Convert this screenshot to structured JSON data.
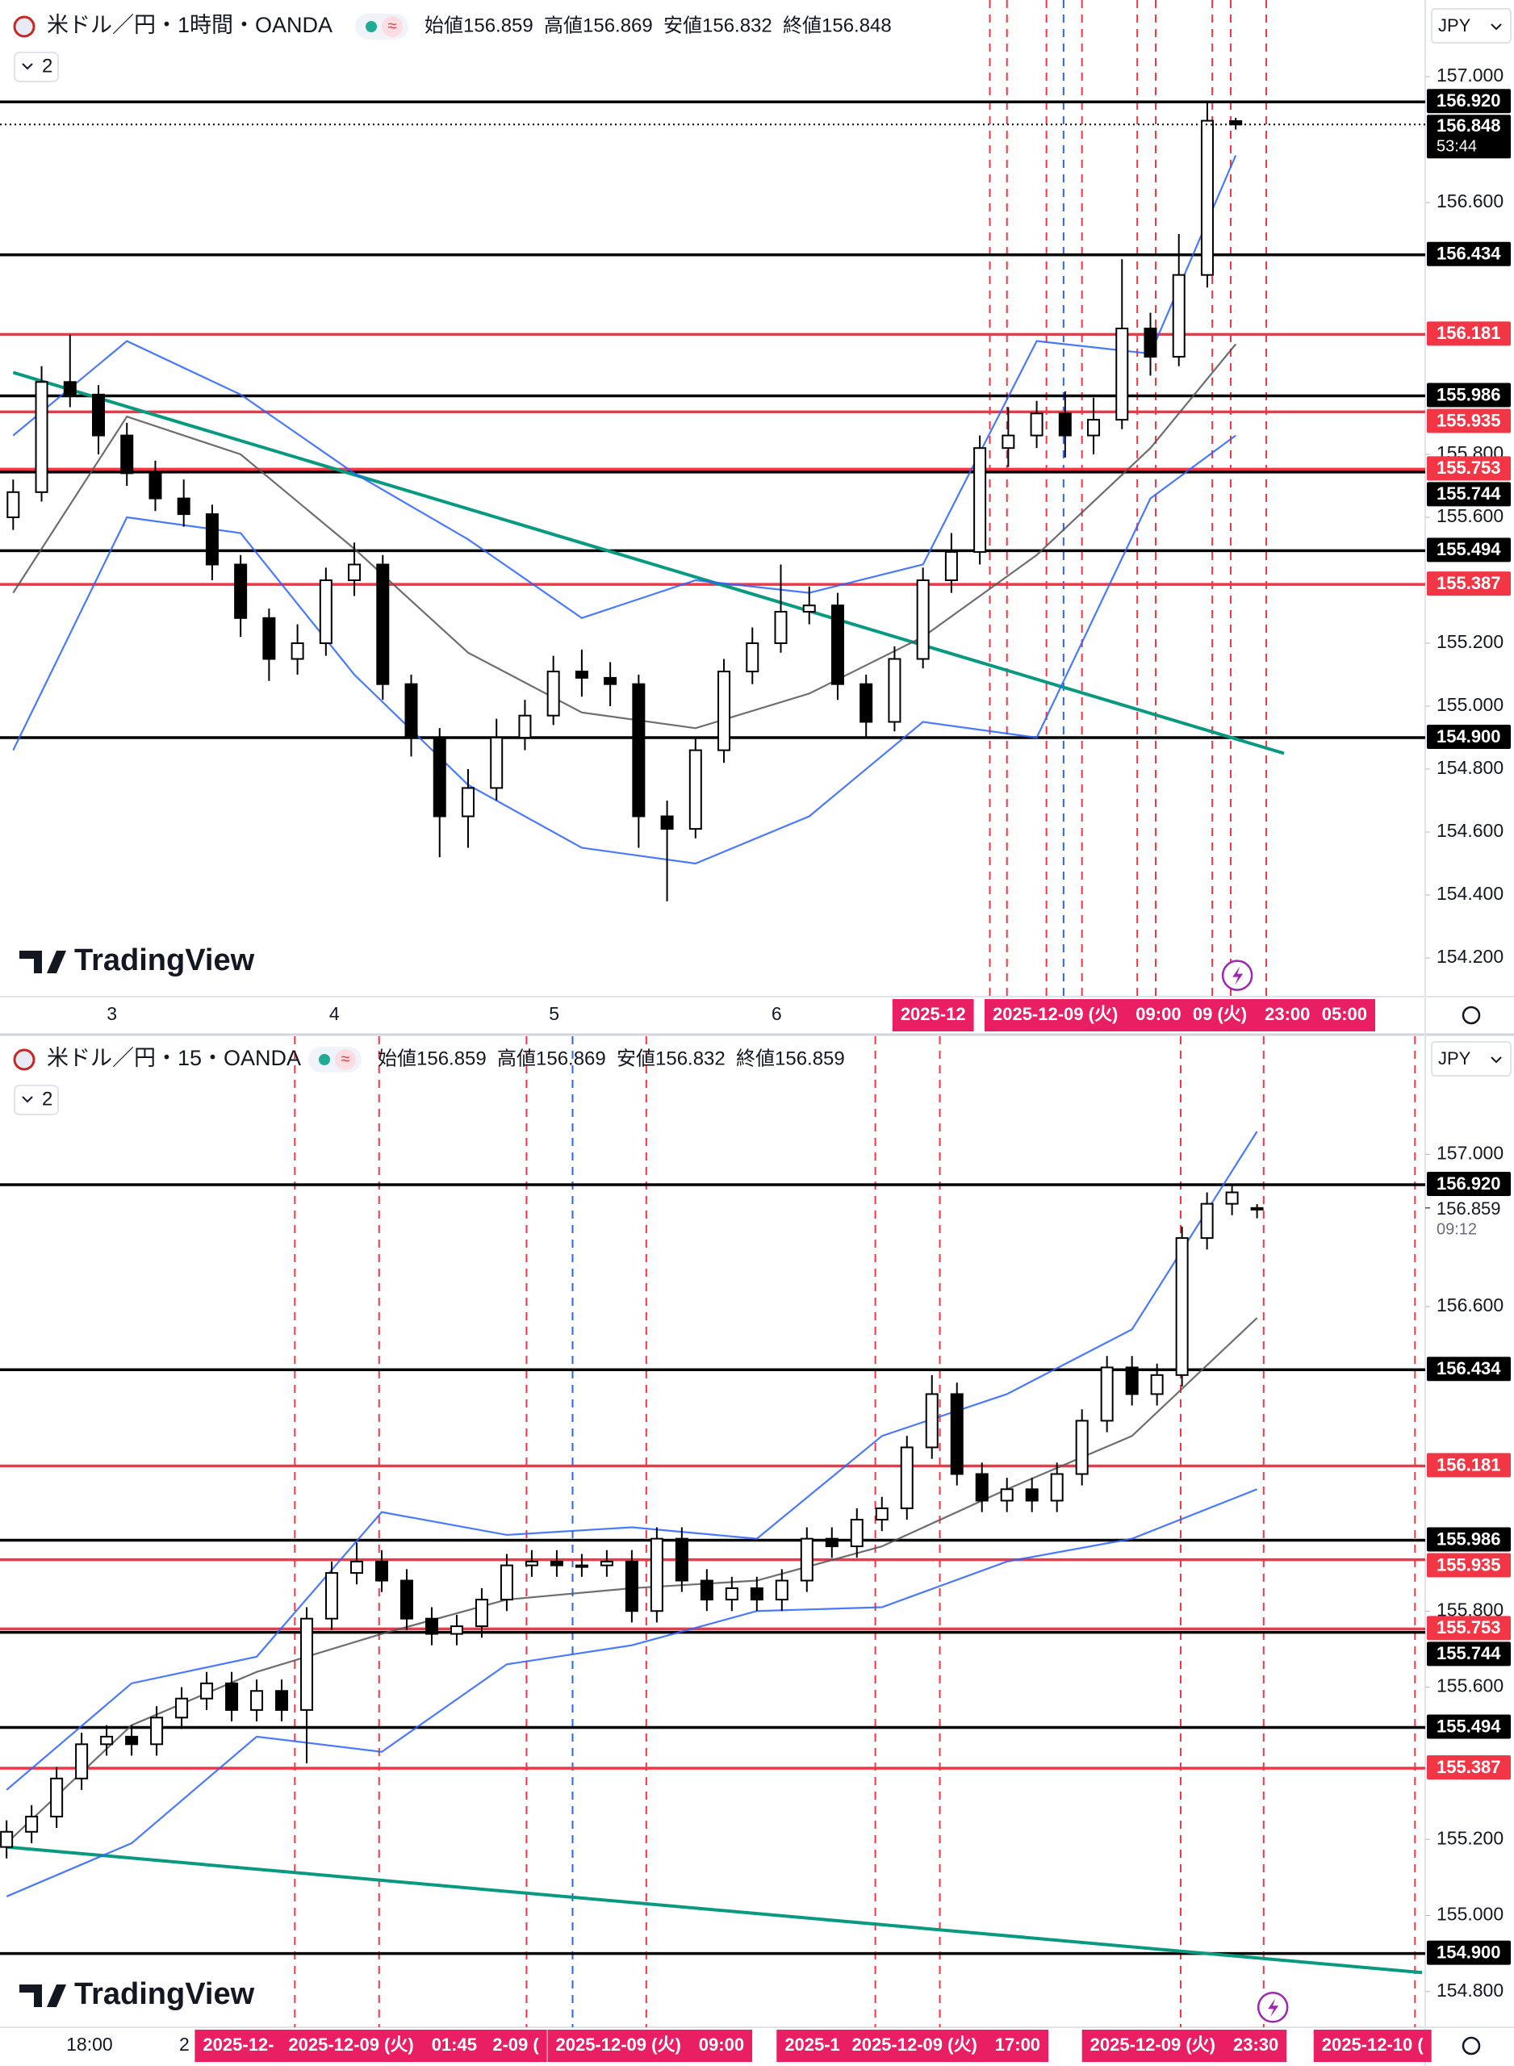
{
  "chart_data": [
    {
      "type": "candlestick",
      "title": "米ドル／円・1時間・OANDA",
      "ohlc": [
        "始値156.859",
        "高値156.869",
        "安値156.832",
        "終値156.848"
      ],
      "collapse": "2",
      "currency": "JPY",
      "watermark": "TradingView",
      "ylim": [
        154.1,
        157.2
      ],
      "yticks": [
        {
          "value": 157,
          "label": "157.000"
        },
        {
          "value": 156.6,
          "label": "156.600"
        },
        {
          "value": 155.8,
          "label": "155.800"
        },
        {
          "value": 155.6,
          "label": "155.600"
        },
        {
          "value": 155.2,
          "label": "155.200"
        },
        {
          "value": 155,
          "label": "155.000"
        },
        {
          "value": 154.8,
          "label": "154.800"
        },
        {
          "value": 154.6,
          "label": "154.600"
        },
        {
          "value": 154.4,
          "label": "154.400"
        },
        {
          "value": 154.2,
          "label": "154.200"
        }
      ],
      "candles": {
        "open": [
          155.6,
          155.68,
          156.03,
          155.99,
          155.86,
          155.74,
          155.66,
          155.61,
          155.45,
          155.28,
          155.15,
          155.2,
          155.4,
          155.45,
          155.07,
          154.9,
          154.65,
          154.74,
          154.9,
          154.97,
          155.11,
          155.09,
          155.07,
          154.65,
          154.61,
          154.86,
          155.11,
          155.2,
          155.3,
          155.32,
          155.07,
          154.95,
          155.15,
          155.4,
          155.49,
          155.82,
          155.86,
          155.93,
          155.86,
          155.91,
          156.2,
          156.11,
          156.37,
          156.859
        ],
        "high": [
          155.72,
          156.08,
          156.18,
          156.02,
          155.9,
          155.78,
          155.72,
          155.64,
          155.48,
          155.31,
          155.26,
          155.44,
          155.52,
          155.48,
          155.1,
          154.93,
          154.8,
          154.96,
          155.02,
          155.16,
          155.18,
          155.14,
          155.1,
          154.7,
          154.9,
          155.15,
          155.25,
          155.45,
          155.38,
          155.36,
          155.1,
          155.19,
          155.44,
          155.55,
          155.86,
          155.95,
          155.97,
          156.0,
          155.98,
          156.42,
          156.25,
          156.5,
          156.92,
          156.869
        ],
        "low": [
          155.56,
          155.65,
          155.95,
          155.8,
          155.7,
          155.62,
          155.57,
          155.4,
          155.22,
          155.08,
          155.1,
          155.16,
          155.35,
          155.02,
          154.84,
          154.52,
          154.55,
          154.7,
          154.86,
          154.94,
          155.03,
          155.0,
          154.55,
          154.38,
          154.58,
          154.82,
          155.07,
          155.17,
          155.26,
          155.02,
          154.9,
          154.92,
          155.12,
          155.36,
          155.45,
          155.76,
          155.82,
          155.79,
          155.8,
          155.88,
          156.05,
          156.08,
          156.33,
          156.832
        ],
        "close": [
          155.68,
          156.03,
          155.99,
          155.86,
          155.74,
          155.66,
          155.61,
          155.45,
          155.28,
          155.15,
          155.2,
          155.4,
          155.45,
          155.07,
          154.9,
          154.65,
          154.74,
          154.9,
          154.97,
          155.11,
          155.09,
          155.07,
          154.65,
          154.61,
          154.86,
          155.11,
          155.2,
          155.3,
          155.32,
          155.07,
          154.95,
          155.15,
          155.4,
          155.49,
          155.82,
          155.86,
          155.93,
          155.86,
          155.91,
          156.2,
          156.11,
          156.37,
          156.86,
          156.848
        ]
      },
      "band_x": [
        0,
        4,
        8,
        12,
        16,
        20,
        24,
        28,
        32,
        36,
        40,
        43
      ],
      "bands": [
        {
          "color": "#2962ff",
          "values": [
            155.86,
            156.16,
            155.99,
            155.74,
            155.53,
            155.28,
            155.4,
            155.36,
            155.45,
            156.16,
            156.12,
            156.75
          ]
        },
        {
          "color": "#555555",
          "values": [
            155.36,
            155.92,
            155.8,
            155.5,
            155.17,
            154.98,
            154.93,
            155.04,
            155.22,
            155.48,
            155.82,
            156.15
          ]
        },
        {
          "color": "#2962ff",
          "values": [
            154.86,
            155.6,
            155.55,
            155.1,
            154.75,
            154.55,
            154.5,
            154.65,
            154.95,
            154.9,
            155.66,
            155.86
          ]
        }
      ],
      "trendline": {
        "color": "#089981",
        "x": [
          0,
          44.7
        ],
        "values": [
          156.06,
          154.85
        ]
      },
      "levels": {
        "values": [
          {
            "value": 156.92,
            "label": "156.920"
          },
          156.434,
          156.181,
          155.986,
          155.935,
          155.753,
          155.744,
          155.494,
          155.387,
          {
            "value": 154.9,
            "label": "154.900"
          }
        ],
        "colors": [
          "#000000",
          "#000000",
          "#f23645",
          "#000000",
          "#f23645",
          "#f23645",
          "#000000",
          "#000000",
          "#f23645",
          "#000000"
        ]
      },
      "current": 156.848,
      "countdown": "53:44",
      "current_label_box": true,
      "time_labels": [
        "3",
        "4",
        "5",
        "6"
      ],
      "time_pills": [
        "2025-12",
        "2025-12-09 (火)　09:00",
        "09 (火)　23:00",
        "05:00"
      ]
    },
    {
      "type": "candlestick",
      "title": "米ドル／円・15・OANDA",
      "ohlc": [
        "始値156.859",
        "高値156.869",
        "安値156.832",
        "終値156.859"
      ],
      "collapse": "2",
      "currency": "JPY",
      "watermark": "TradingView",
      "ylim": [
        154.7,
        157.2
      ],
      "yticks": [
        {
          "value": 157,
          "label": "157.000"
        },
        {
          "value": 156.6,
          "label": "156.600"
        },
        {
          "value": 155.8,
          "label": "155.800"
        },
        {
          "value": 155.6,
          "label": "155.600"
        },
        {
          "value": 155.2,
          "label": "155.200"
        },
        {
          "value": 155,
          "label": "155.000"
        },
        {
          "value": 154.8,
          "label": "154.800"
        }
      ],
      "candles": {
        "open": [
          155.18,
          155.22,
          155.26,
          155.36,
          155.45,
          155.47,
          155.45,
          155.52,
          155.57,
          155.61,
          155.54,
          155.59,
          155.54,
          155.78,
          155.9,
          155.93,
          155.88,
          155.78,
          155.74,
          155.76,
          155.83,
          155.92,
          155.93,
          155.92,
          155.92,
          155.93,
          155.8,
          155.99,
          155.88,
          155.83,
          155.86,
          155.83,
          155.88,
          155.99,
          155.97,
          156.04,
          156.07,
          156.23,
          156.37,
          156.16,
          156.09,
          156.12,
          156.09,
          156.16,
          156.3,
          156.44,
          156.37,
          156.42,
          156.78,
          156.87,
          156.859
        ],
        "high": [
          155.25,
          155.29,
          155.39,
          155.48,
          155.5,
          155.5,
          155.55,
          155.6,
          155.64,
          155.64,
          155.62,
          155.62,
          155.81,
          155.93,
          155.98,
          155.96,
          155.91,
          155.81,
          155.79,
          155.86,
          155.95,
          155.96,
          155.96,
          155.95,
          155.96,
          155.96,
          156.02,
          156.02,
          155.91,
          155.89,
          155.89,
          155.91,
          156.02,
          156.02,
          156.07,
          156.1,
          156.26,
          156.42,
          156.4,
          156.19,
          156.15,
          156.15,
          156.19,
          156.33,
          156.47,
          156.47,
          156.45,
          156.81,
          156.9,
          156.92,
          156.869
        ],
        "low": [
          155.15,
          155.19,
          155.23,
          155.33,
          155.42,
          155.42,
          155.42,
          155.49,
          155.54,
          155.51,
          155.51,
          155.51,
          155.4,
          155.75,
          155.87,
          155.85,
          155.75,
          155.71,
          155.71,
          155.73,
          155.8,
          155.89,
          155.89,
          155.89,
          155.89,
          155.77,
          155.77,
          155.85,
          155.8,
          155.8,
          155.8,
          155.8,
          155.85,
          155.94,
          155.94,
          156.01,
          156.04,
          156.2,
          156.13,
          156.06,
          156.06,
          156.06,
          156.06,
          156.13,
          156.27,
          156.34,
          156.34,
          156.39,
          156.75,
          156.84,
          156.832
        ],
        "close": [
          155.22,
          155.26,
          155.36,
          155.45,
          155.47,
          155.45,
          155.52,
          155.57,
          155.61,
          155.54,
          155.59,
          155.54,
          155.78,
          155.9,
          155.93,
          155.88,
          155.78,
          155.74,
          155.76,
          155.83,
          155.92,
          155.93,
          155.92,
          155.92,
          155.93,
          155.8,
          155.99,
          155.88,
          155.83,
          155.86,
          155.83,
          155.88,
          155.99,
          155.97,
          156.04,
          156.07,
          156.23,
          156.37,
          156.16,
          156.09,
          156.12,
          156.09,
          156.16,
          156.3,
          156.44,
          156.37,
          156.42,
          156.78,
          156.87,
          156.9,
          156.859
        ]
      },
      "band_x": [
        0,
        5,
        10,
        15,
        20,
        25,
        30,
        35,
        40,
        45,
        50
      ],
      "bands": [
        {
          "color": "#2962ff",
          "values": [
            155.33,
            155.61,
            155.68,
            156.06,
            156.0,
            156.02,
            155.99,
            156.26,
            156.37,
            156.54,
            157.06
          ]
        },
        {
          "color": "#555555",
          "values": [
            155.19,
            155.5,
            155.64,
            155.74,
            155.83,
            155.86,
            155.88,
            155.97,
            156.12,
            156.26,
            156.57
          ]
        },
        {
          "color": "#2962ff",
          "values": [
            155.05,
            155.19,
            155.47,
            155.43,
            155.66,
            155.71,
            155.8,
            155.81,
            155.93,
            155.99,
            156.12
          ]
        }
      ],
      "trendline": {
        "color": "#089981",
        "x": [
          0,
          56.6
        ],
        "values": [
          155.18,
          154.85
        ]
      },
      "levels": {
        "values": [
          {
            "value": 156.92,
            "label": "156.920"
          },
          156.434,
          156.181,
          155.986,
          155.935,
          155.753,
          155.744,
          155.494,
          155.387,
          {
            "value": 154.9,
            "label": "154.900"
          }
        ],
        "colors": [
          "#000000",
          "#000000",
          "#f23645",
          "#000000",
          "#f23645",
          "#f23645",
          "#000000",
          "#000000",
          "#f23645",
          "#000000"
        ]
      },
      "current": 156.859,
      "countdown": "09:12",
      "current_label_box": false,
      "time_labels": [
        "18:00",
        "2"
      ],
      "time_pills": [
        "2025-12-",
        "2025-12-09 (火)　01:45",
        "2-09 (",
        "2025-12-09 (火)　09:00",
        "2025-1",
        "2025-12-09 (火)　17:00",
        "2025-12-09 (火)　23:30",
        "2025-12-10 ("
      ]
    }
  ]
}
